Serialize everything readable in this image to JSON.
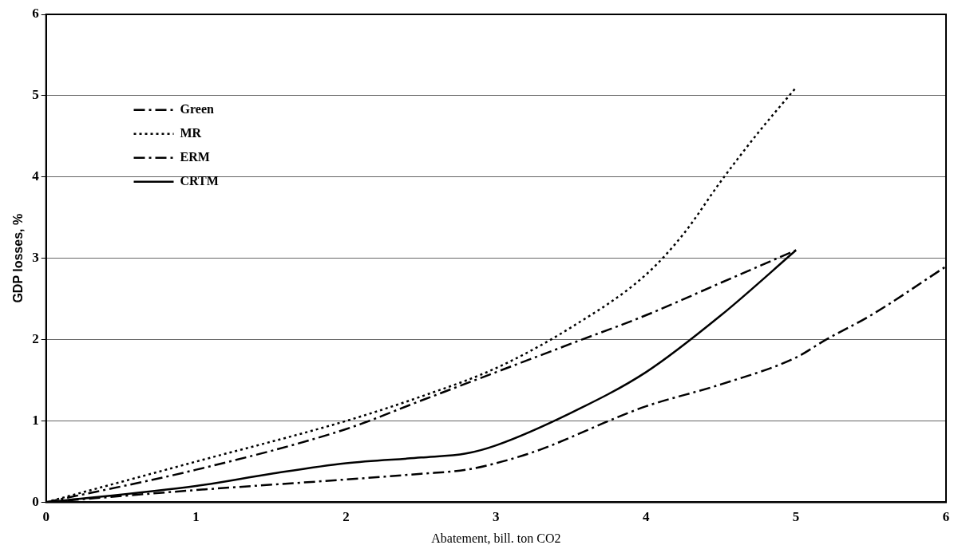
{
  "chart_data": {
    "type": "line",
    "xlabel": "Abatement, bill. ton CO2",
    "ylabel": "GDP losses, %",
    "xlim": [
      0,
      6
    ],
    "xticks": [
      0,
      1,
      2,
      3,
      4,
      5,
      6
    ],
    "ylim": [
      0,
      6
    ],
    "yticks": [
      0,
      1,
      2,
      3,
      4,
      5,
      6
    ],
    "grid": "y",
    "legend": "top left",
    "marker": "none",
    "series": [
      {
        "name": "Green",
        "color": "#000000",
        "line_style": "dashed",
        "x": [
          0,
          1,
          2,
          2.5,
          2.8,
          3,
          3.3,
          3.5,
          3.75,
          4,
          4.5,
          5,
          5.2,
          5.5,
          6
        ],
        "values": [
          0,
          0.15,
          0.28,
          0.35,
          0.4,
          0.48,
          0.65,
          0.8,
          1.0,
          1.18,
          1.45,
          1.78,
          2.0,
          2.3,
          2.9
        ]
      },
      {
        "name": "MR",
        "color": "#000000",
        "line_style": "dotted",
        "x": [
          0,
          1,
          2,
          2.5,
          3,
          3.5,
          4,
          4.25,
          4.5,
          4.75,
          5
        ],
        "values": [
          0,
          0.5,
          1.0,
          1.3,
          1.65,
          2.15,
          2.8,
          3.3,
          3.95,
          4.55,
          5.1
        ]
      },
      {
        "name": "ERM",
        "color": "#000000",
        "line_style": "dashed",
        "x": [
          0,
          1,
          2,
          2.5,
          3,
          3.5,
          4,
          4.5,
          5
        ],
        "values": [
          0,
          0.4,
          0.9,
          1.25,
          1.6,
          1.95,
          2.3,
          2.7,
          3.1
        ]
      },
      {
        "name": "CRTM",
        "color": "#000000",
        "line_style": "solid",
        "x": [
          0,
          1,
          1.5,
          2,
          2.5,
          2.8,
          3,
          3.5,
          4,
          4.5,
          5
        ],
        "values": [
          0,
          0.2,
          0.35,
          0.48,
          0.55,
          0.6,
          0.7,
          1.1,
          1.6,
          2.3,
          3.1
        ]
      }
    ]
  }
}
